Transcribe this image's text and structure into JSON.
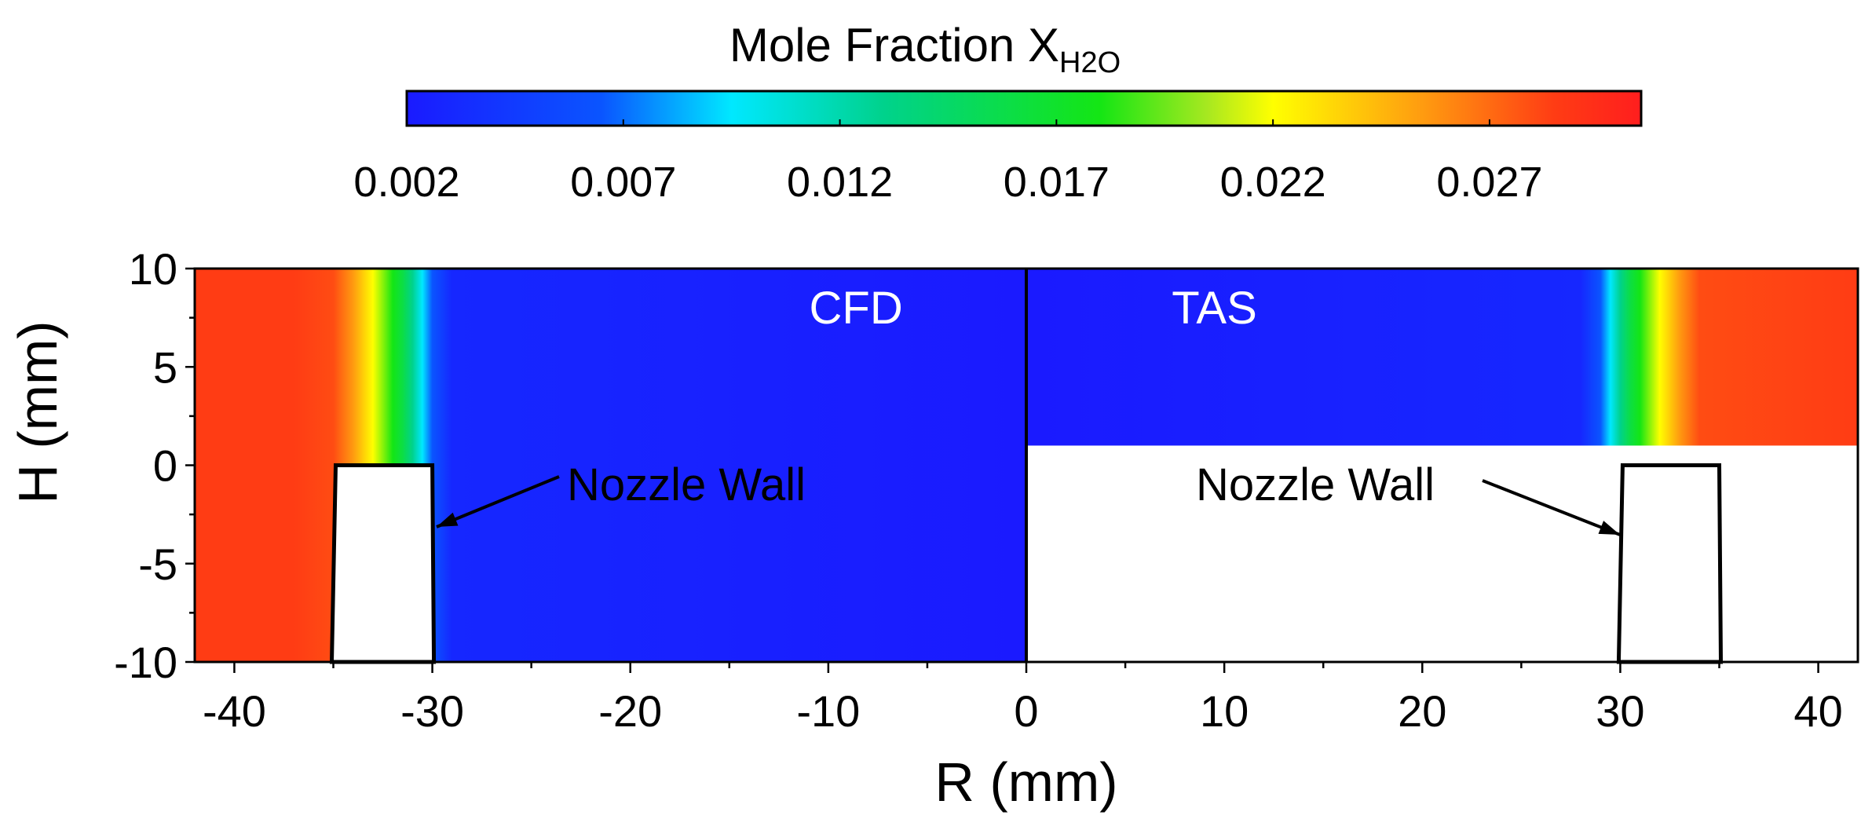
{
  "colorbar": {
    "title_main": "Mole Fraction X",
    "title_sub": "H2O",
    "ticks": [
      "0.002",
      "0.007",
      "0.012",
      "0.017",
      "0.022",
      "0.027"
    ],
    "tick_values": [
      0.002,
      0.007,
      0.012,
      0.017,
      0.022,
      0.027
    ],
    "range": [
      0.002,
      0.0305
    ],
    "stops": [
      {
        "v": 0.002,
        "color": "#1a1aff"
      },
      {
        "v": 0.0065,
        "color": "#0a55ff"
      },
      {
        "v": 0.0095,
        "color": "#00e8ff"
      },
      {
        "v": 0.013,
        "color": "#00d28c"
      },
      {
        "v": 0.018,
        "color": "#14e614"
      },
      {
        "v": 0.0205,
        "color": "#a8e820"
      },
      {
        "v": 0.022,
        "color": "#ffff00"
      },
      {
        "v": 0.0255,
        "color": "#ff9a10"
      },
      {
        "v": 0.0285,
        "color": "#ff3c14"
      },
      {
        "v": 0.0305,
        "color": "#ff1e1e"
      }
    ]
  },
  "chart_data": {
    "type": "heatmap",
    "title": "Mole Fraction XH2O",
    "xlabel": "R (mm)",
    "ylabel": "H (mm)",
    "xlim": [
      -42,
      42
    ],
    "ylim": [
      -10,
      10
    ],
    "xticks": [
      -40,
      -30,
      -20,
      -10,
      0,
      10,
      20,
      30,
      40
    ],
    "yticks": [
      10,
      5,
      0,
      -5,
      -10
    ],
    "panels": [
      {
        "label": "CFD",
        "x_range": [
          -42,
          0
        ],
        "y_range": [
          -10,
          10
        ],
        "profile": [
          {
            "r": -42,
            "x": 0.0285
          },
          {
            "r": -37,
            "x": 0.0285
          },
          {
            "r": -35,
            "x": 0.028
          },
          {
            "r": -34,
            "x": 0.0255
          },
          {
            "r": -33,
            "x": 0.022
          },
          {
            "r": -32,
            "x": 0.018
          },
          {
            "r": -31.5,
            "x": 0.016
          },
          {
            "r": -31,
            "x": 0.013
          },
          {
            "r": -30.5,
            "x": 0.0095
          },
          {
            "r": -30,
            "x": 0.0065
          },
          {
            "r": -29,
            "x": 0.003
          },
          {
            "r": 0,
            "x": 0.002
          }
        ]
      },
      {
        "label": "TAS",
        "x_range": [
          0,
          42
        ],
        "y_range": [
          1,
          10
        ],
        "profile": [
          {
            "r": 0,
            "x": 0.002
          },
          {
            "r": 28,
            "x": 0.003
          },
          {
            "r": 29,
            "x": 0.0065
          },
          {
            "r": 29.5,
            "x": 0.0095
          },
          {
            "r": 30,
            "x": 0.013
          },
          {
            "r": 30.5,
            "x": 0.016
          },
          {
            "r": 31,
            "x": 0.018
          },
          {
            "r": 32,
            "x": 0.022
          },
          {
            "r": 33,
            "x": 0.0255
          },
          {
            "r": 34,
            "x": 0.028
          },
          {
            "r": 42,
            "x": 0.0285
          }
        ]
      }
    ],
    "annotations": [
      {
        "text": "Nozzle Wall",
        "side": "left"
      },
      {
        "text": "Nozzle Wall",
        "side": "right"
      }
    ],
    "walls": [
      {
        "r_bottom": [
          -35,
          -30
        ],
        "r_top": [
          -35,
          -30
        ],
        "h_top": 0
      },
      {
        "r_bottom": [
          30,
          35
        ],
        "r_top": [
          30,
          35
        ],
        "h_top": 0
      }
    ]
  }
}
